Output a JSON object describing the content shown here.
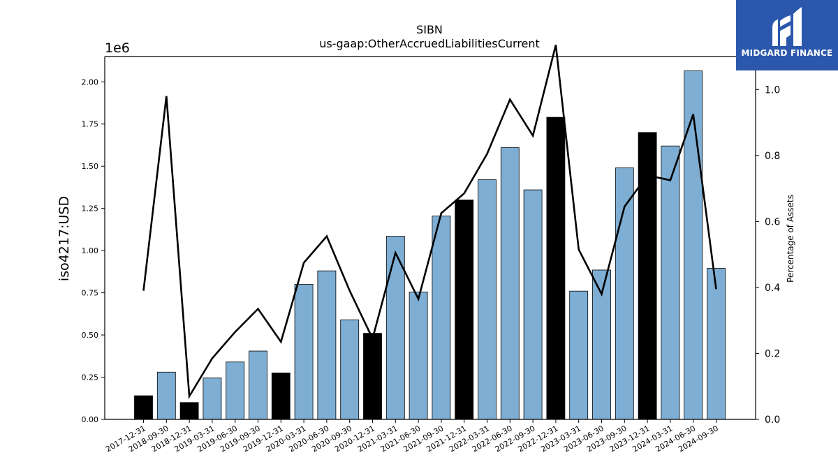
{
  "chart_data": {
    "type": "bar",
    "title": "SIBN",
    "subtitle": "us-gaap:OtherAccruedLiabilitiesCurrent",
    "ylabel": "iso4217:USD",
    "y_multiplier_label": "1e6",
    "y2label": "Percentage of Assets",
    "ylim": [
      0,
      2150000
    ],
    "y2lim": [
      0,
      1.1
    ],
    "y_ticks": [
      0,
      250000,
      500000,
      750000,
      1000000,
      1250000,
      1500000,
      1750000,
      2000000
    ],
    "y_tick_labels": [
      "0.00",
      "0.25",
      "0.50",
      "0.75",
      "1.00",
      "1.25",
      "1.50",
      "1.75",
      "2.00"
    ],
    "y2_ticks": [
      0,
      0.2,
      0.4,
      0.6,
      0.8,
      1.0
    ],
    "y2_tick_labels": [
      "0.0",
      "0.2",
      "0.4",
      "0.6",
      "0.8",
      "1.0"
    ],
    "grid": false,
    "categories": [
      "2017-12-31",
      "2018-09-30",
      "2018-12-31",
      "2019-03-31",
      "2019-06-30",
      "2019-09-30",
      "2019-12-31",
      "2020-03-31",
      "2020-06-30",
      "2020-09-30",
      "2020-12-31",
      "2021-03-31",
      "2021-06-30",
      "2021-09-30",
      "2021-12-31",
      "2022-03-31",
      "2022-06-30",
      "2022-09-30",
      "2022-12-31",
      "2023-03-31",
      "2023-06-30",
      "2023-09-30",
      "2023-12-31",
      "2024-03-31",
      "2024-06-30",
      "2024-09-30"
    ],
    "series": [
      {
        "type": "bar",
        "values": [
          140000,
          280000,
          100000,
          245000,
          340000,
          405000,
          275000,
          800000,
          880000,
          590000,
          510000,
          1085000,
          755000,
          1205000,
          1300000,
          1420000,
          1610000,
          1360000,
          1790000,
          760000,
          885000,
          1490000,
          1700000,
          1620000,
          2065000,
          895000
        ],
        "annual": [
          true,
          false,
          true,
          false,
          false,
          false,
          true,
          false,
          false,
          false,
          true,
          false,
          false,
          false,
          true,
          false,
          false,
          false,
          true,
          false,
          false,
          false,
          true,
          false,
          false,
          false
        ]
      },
      {
        "type": "line",
        "axis": "right",
        "values": [
          0.39,
          0.98,
          0.07,
          0.185,
          0.265,
          0.335,
          0.235,
          0.475,
          0.555,
          0.39,
          0.245,
          0.505,
          0.365,
          0.625,
          0.685,
          0.805,
          0.97,
          0.86,
          1.135,
          0.515,
          0.38,
          0.645,
          0.74,
          0.725,
          0.925,
          0.395
        ]
      }
    ],
    "colors": {
      "quarter_bar": "#7eaed3",
      "annual_bar": "#000000",
      "bar_edge": "#000000",
      "line": "#000000"
    }
  },
  "watermark": {
    "text": "MIDGARD FINANCE",
    "background": "#2b58ad"
  }
}
